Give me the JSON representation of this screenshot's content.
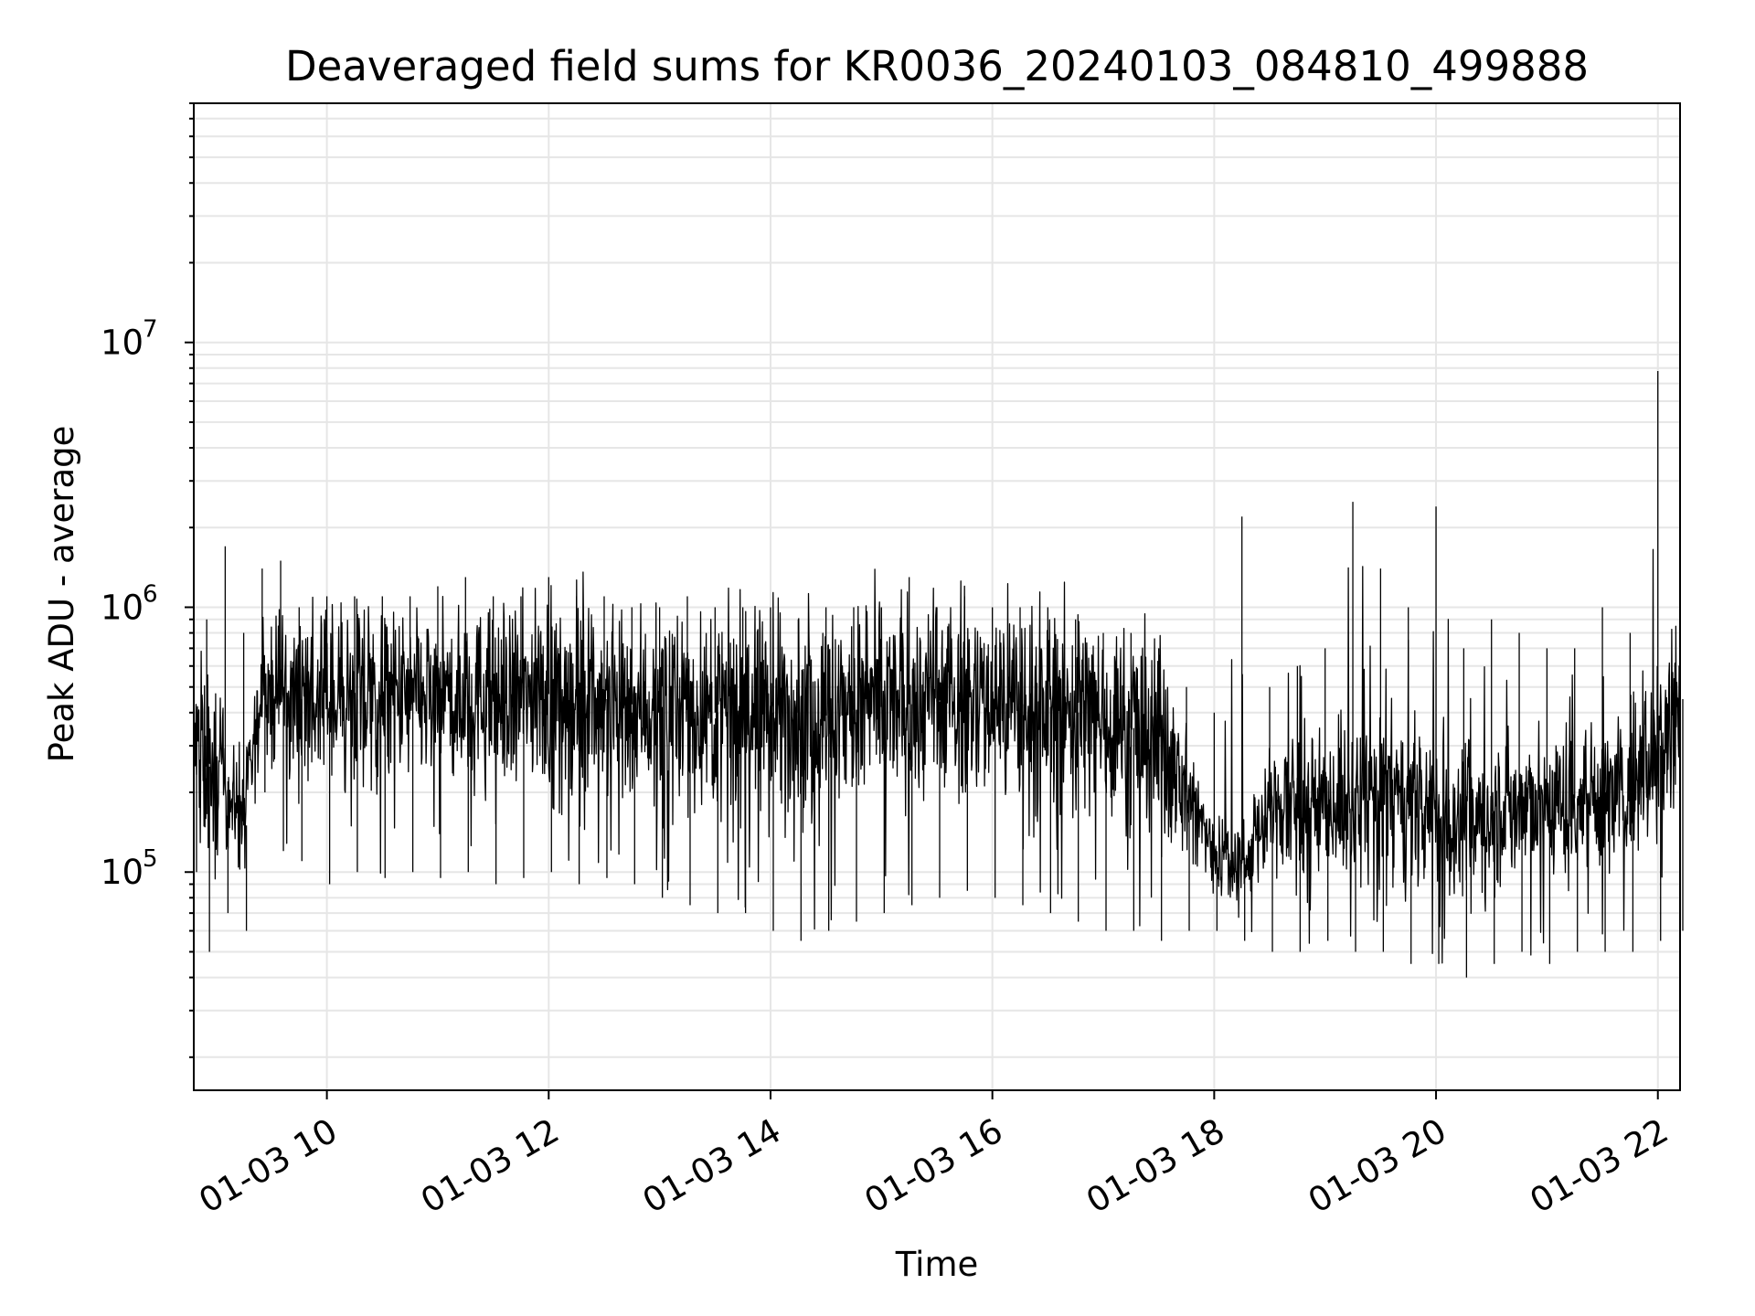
{
  "chart_data": {
    "type": "line",
    "title": "Deaveraged field sums for KR0036_20240103_084810_499888",
    "xlabel": "Time",
    "ylabel": "Peak ADU - average",
    "x_range": [
      "01-03 08:48",
      "01-03 22:12"
    ],
    "y_scale": "log",
    "ylim": [
      15000,
      80000000
    ],
    "y_ticks": [
      {
        "value": 100000,
        "base": "10",
        "exp": "5"
      },
      {
        "value": 1000000,
        "base": "10",
        "exp": "6"
      },
      {
        "value": 10000000,
        "base": "10",
        "exp": "7"
      }
    ],
    "x_ticks": [
      {
        "value": "01-03 10:00",
        "label": "01-03 10"
      },
      {
        "value": "01-03 12:00",
        "label": "01-03 12"
      },
      {
        "value": "01-03 14:00",
        "label": "01-03 14"
      },
      {
        "value": "01-03 16:00",
        "label": "01-03 16"
      },
      {
        "value": "01-03 18:00",
        "label": "01-03 18"
      },
      {
        "value": "01-03 20:00",
        "label": "01-03 20"
      },
      {
        "value": "01-03 22:00",
        "label": "01-03 22"
      }
    ],
    "grid": true,
    "line_color": "#000000",
    "series": [
      {
        "x": [
          "01-03 08:48",
          "01-03 08:55",
          "01-03 09:05",
          "01-03 09:15",
          "01-03 09:25",
          "01-03 09:35",
          "01-03 09:45",
          "01-03 10:00",
          "01-03 10:15",
          "01-03 10:30",
          "01-03 10:45",
          "01-03 11:00",
          "01-03 11:15",
          "01-03 11:30",
          "01-03 11:45",
          "01-03 12:00",
          "01-03 12:15",
          "01-03 12:30",
          "01-03 12:45",
          "01-03 13:00",
          "01-03 13:15",
          "01-03 13:30",
          "01-03 13:45",
          "01-03 14:00",
          "01-03 14:15",
          "01-03 14:30",
          "01-03 14:45",
          "01-03 15:00",
          "01-03 15:15",
          "01-03 15:30",
          "01-03 15:45",
          "01-03 16:00",
          "01-03 16:15",
          "01-03 16:30",
          "01-03 16:45",
          "01-03 17:00",
          "01-03 17:15",
          "01-03 17:30",
          "01-03 17:45",
          "01-03 18:00",
          "01-03 18:15",
          "01-03 18:30",
          "01-03 18:45",
          "01-03 19:00",
          "01-03 19:15",
          "01-03 19:30",
          "01-03 19:45",
          "01-03 20:00",
          "01-03 20:15",
          "01-03 20:30",
          "01-03 20:45",
          "01-03 21:00",
          "01-03 21:15",
          "01-03 21:30",
          "01-03 21:45",
          "01-03 22:00",
          "01-03 22:12"
        ],
        "y": [
          300000,
          250000,
          220000,
          150000,
          500000,
          480000,
          450000,
          440000,
          450000,
          460000,
          440000,
          450000,
          460000,
          440000,
          450000,
          470000,
          460000,
          450000,
          430000,
          420000,
          410000,
          400000,
          410000,
          400000,
          400000,
          390000,
          410000,
          420000,
          430000,
          440000,
          450000,
          440000,
          430000,
          420000,
          400000,
          380000,
          350000,
          300000,
          200000,
          120000,
          110000,
          170000,
          180000,
          180000,
          170000,
          200000,
          180000,
          160000,
          150000,
          170000,
          180000,
          180000,
          190000,
          200000,
          210000,
          300000,
          450000
        ],
        "y_min": [
          100000,
          50000,
          70000,
          60000,
          200000,
          120000,
          110000,
          90000,
          100000,
          95000,
          100000,
          95000,
          100000,
          90000,
          95000,
          100000,
          90000,
          95000,
          90000,
          80000,
          75000,
          70000,
          70000,
          60000,
          55000,
          60000,
          65000,
          70000,
          75000,
          80000,
          85000,
          80000,
          75000,
          70000,
          65000,
          60000,
          60000,
          55000,
          60000,
          60000,
          55000,
          50000,
          50000,
          55000,
          50000,
          50000,
          45000,
          45000,
          40000,
          45000,
          50000,
          45000,
          50000,
          50000,
          50000,
          55000,
          60000
        ],
        "y_max": [
          1600000,
          900000,
          1700000,
          800000,
          1400000,
          1500000,
          1000000,
          1100000,
          1100000,
          1100000,
          1100000,
          1200000,
          1300000,
          1100000,
          1100000,
          1300000,
          1100000,
          1100000,
          1000000,
          1000000,
          1100000,
          1000000,
          1000000,
          1000000,
          900000,
          1000000,
          1000000,
          1000000,
          1300000,
          1000000,
          1100000,
          1000000,
          1000000,
          1000000,
          900000,
          800000,
          800000,
          700000,
          500000,
          400000,
          2200000,
          500000,
          600000,
          700000,
          2500000,
          1400000,
          1000000,
          2400000,
          700000,
          900000,
          800000,
          700000,
          700000,
          1000000,
          800000,
          7800000,
          800000
        ]
      }
    ]
  }
}
